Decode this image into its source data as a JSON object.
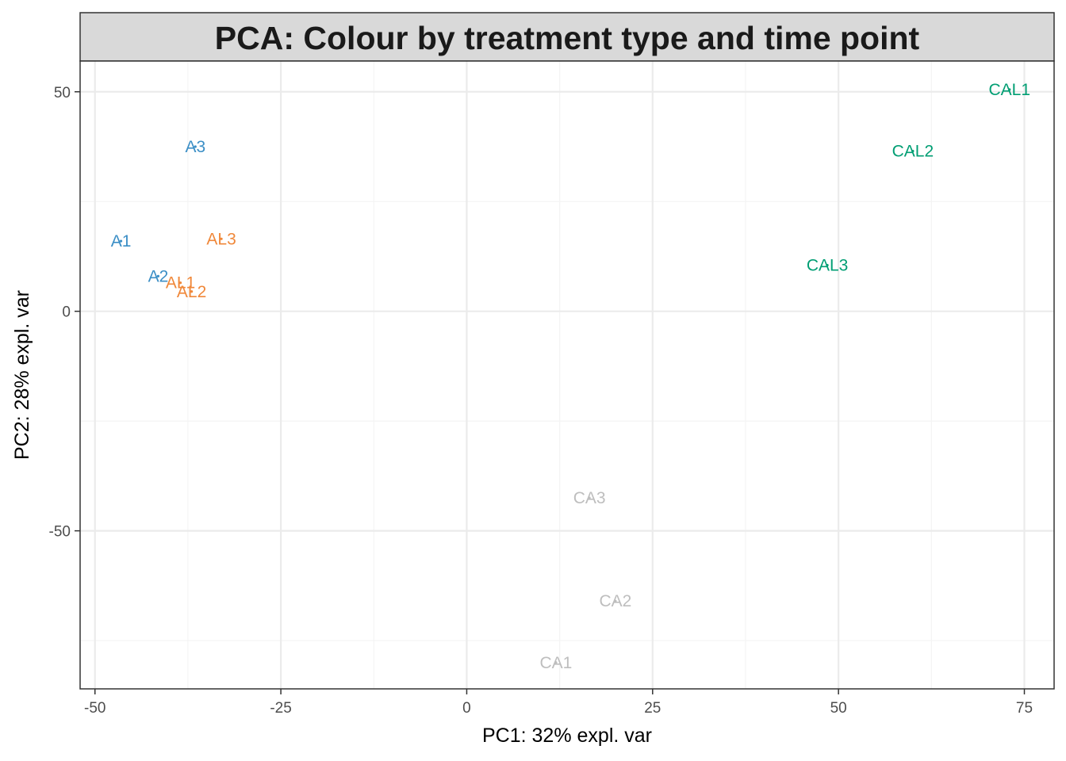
{
  "chart_data": {
    "type": "scatter",
    "title": "PCA: Colour by treatment type and time point",
    "xlabel": "PC1: 32% expl. var",
    "ylabel": "PC2: 28% expl. var",
    "xlim": [
      -52,
      79
    ],
    "ylim": [
      -86,
      57
    ],
    "x_ticks": [
      -50,
      -25,
      0,
      25,
      50,
      75
    ],
    "x_tick_labels": [
      "-50",
      "-25",
      "0",
      "25",
      "50",
      "75"
    ],
    "y_ticks": [
      -50,
      0,
      50
    ],
    "y_tick_labels": [
      "-50",
      "0",
      "50"
    ],
    "grid": true,
    "legend": "none",
    "points": [
      {
        "label": "A1",
        "x": -46.5,
        "y": 16.0,
        "color": "#3C8FC6"
      },
      {
        "label": "A2",
        "x": -41.5,
        "y": 8.0,
        "color": "#3C8FC6"
      },
      {
        "label": "A3",
        "x": -36.5,
        "y": 37.5,
        "color": "#3C8FC6"
      },
      {
        "label": "AL1",
        "x": -38.5,
        "y": 6.5,
        "color": "#F0883A"
      },
      {
        "label": "AL2",
        "x": -37.0,
        "y": 4.5,
        "color": "#F0883A"
      },
      {
        "label": "AL3",
        "x": -33.0,
        "y": 16.5,
        "color": "#F0883A"
      },
      {
        "label": "CA1",
        "x": 12.0,
        "y": -80.0,
        "color": "#BEBEBE"
      },
      {
        "label": "CA2",
        "x": 20.0,
        "y": -66.0,
        "color": "#BEBEBE"
      },
      {
        "label": "CA3",
        "x": 16.5,
        "y": -42.5,
        "color": "#BEBEBE"
      },
      {
        "label": "CAL1",
        "x": 73.0,
        "y": 50.5,
        "color": "#009E73"
      },
      {
        "label": "CAL2",
        "x": 60.0,
        "y": 36.5,
        "color": "#009E73"
      },
      {
        "label": "CAL3",
        "x": 48.5,
        "y": 10.5,
        "color": "#009E73"
      }
    ],
    "colors": {
      "panel_border": "#333333",
      "strip_fill": "#D9D9D9",
      "grid_major": "#EBEBEB",
      "grid_minor": "#F4F4F4",
      "tick_text": "#4D4D4D"
    }
  }
}
